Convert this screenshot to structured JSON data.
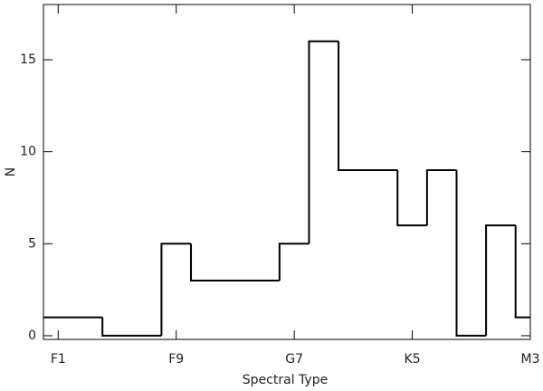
{
  "chart_data": {
    "type": "histogram",
    "xlabel": "Spectral Type",
    "ylabel": "N",
    "bins": [
      0,
      4,
      8,
      10,
      16,
      18,
      20,
      24,
      26,
      28,
      30,
      32,
      33
    ],
    "values": [
      1,
      0,
      5,
      3,
      5,
      16,
      9,
      6,
      9,
      0,
      6,
      1
    ],
    "color": "#000000",
    "xlim": [
      0,
      33
    ],
    "xticks": [
      {
        "value": 1,
        "label": "F1"
      },
      {
        "value": 9,
        "label": "F9"
      },
      {
        "value": 17,
        "label": "G7"
      },
      {
        "value": 25,
        "label": "K5"
      },
      {
        "value": 33,
        "label": "M3"
      }
    ],
    "ylim": [
      -0.2,
      18
    ],
    "yticks": [
      0,
      5,
      10,
      15
    ]
  }
}
